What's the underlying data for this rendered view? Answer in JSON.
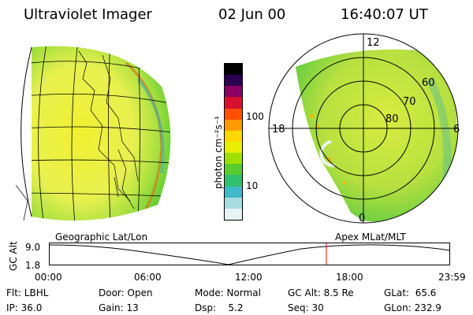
{
  "header": {
    "instrument": "Ultraviolet Imager",
    "date": "02 Jun 00",
    "time": "16:40:07 UT"
  },
  "colorbar": {
    "unit_label": "photon cm⁻²s⁻¹",
    "ticks": [
      "100",
      "10"
    ],
    "colors": [
      "#000000",
      "#2a0050",
      "#8b0060",
      "#d81030",
      "#ff5000",
      "#ff9a00",
      "#ffd800",
      "#e8f000",
      "#a0e000",
      "#58cc30",
      "#30c070",
      "#40b8c8",
      "#a8dce0",
      "#e8f4f4"
    ]
  },
  "polar_plot": {
    "mlt_labels": {
      "top": "12",
      "left": "18",
      "right": "6",
      "bottom": "0"
    },
    "lat_labels": [
      "60",
      "70",
      "80"
    ]
  },
  "altitude_strip": {
    "left_label": "Geographic Lat/Lon",
    "right_label": "Apex MLat/MLT",
    "axis_title": "GC Alt",
    "y_ticks": [
      "9.0",
      "1.8"
    ],
    "x_ticks": [
      "00:00",
      "06:00",
      "12:00",
      "18:00",
      "23:59"
    ],
    "marker_color": "#ff0000"
  },
  "info": {
    "col1": [
      "Flt: LBHL",
      "IP: 36.0"
    ],
    "col2": [
      "Door: Open",
      "Gain: 13"
    ],
    "col3": [
      "Mode: Normal",
      "Dsp:    5.2"
    ],
    "col4": [
      "GC Alt: 8.5 Re",
      "Seq: 30"
    ],
    "col5": [
      "GLat:  65.6",
      "GLon: 232.9"
    ]
  }
}
